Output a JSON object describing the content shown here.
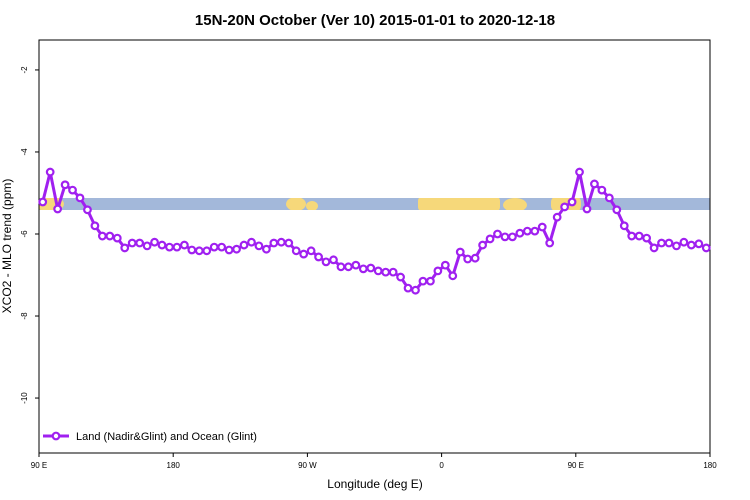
{
  "chart_data": {
    "type": "line",
    "title": "15N-20N October (Ver 10)   2015-01-01 to 2020-12-18",
    "xlabel": "Longitude (deg E)",
    "ylabel": "XCO2 - MLO trend (ppm)",
    "x": [
      92.5,
      97.5,
      102.5,
      107.5,
      112.5,
      117.5,
      122.5,
      127.5,
      132.5,
      137.5,
      142.5,
      147.5,
      152.5,
      157.5,
      162.5,
      167.5,
      172.5,
      177.5,
      182.5,
      187.5,
      192.5,
      197.5,
      202.5,
      207.5,
      212.5,
      217.5,
      222.5,
      227.5,
      232.5,
      237.5,
      242.5,
      247.5,
      252.5,
      257.5,
      262.5,
      267.5,
      272.5,
      277.5,
      282.5,
      287.5,
      292.5,
      297.5,
      302.5,
      307.5,
      312.5,
      317.5,
      322.5,
      327.5,
      332.5,
      337.5,
      342.5,
      347.5,
      352.5,
      357.5,
      362.5,
      367.5,
      372.5,
      377.5,
      382.5,
      387.5,
      392.5,
      397.5,
      402.5,
      407.5,
      412.5,
      417.5,
      422.5,
      427.5,
      432.5,
      437.5,
      442.5,
      447.5,
      452.5,
      457.5,
      462.5,
      467.5,
      472.5,
      477.5,
      482.5,
      487.5,
      492.5,
      497.5,
      502.5,
      507.5,
      512.5,
      517.5,
      522.5,
      527.5,
      532.5,
      537.5
    ],
    "series": [
      {
        "name": "Land (Nadir&Glint) and Ocean (Glint)",
        "color": "#a020f0",
        "values": [
          -5.22,
          -4.49,
          -5.39,
          -4.8,
          -4.93,
          -5.12,
          -5.41,
          -5.8,
          -6.05,
          -6.05,
          -6.1,
          -6.34,
          -6.22,
          -6.22,
          -6.29,
          -6.2,
          -6.27,
          -6.32,
          -6.32,
          -6.27,
          -6.39,
          -6.41,
          -6.41,
          -6.32,
          -6.32,
          -6.39,
          -6.37,
          -6.27,
          -6.2,
          -6.29,
          -6.37,
          -6.22,
          -6.2,
          -6.22,
          -6.41,
          -6.49,
          -6.41,
          -6.56,
          -6.68,
          -6.63,
          -6.8,
          -6.8,
          -6.76,
          -6.85,
          -6.83,
          -6.9,
          -6.93,
          -6.93,
          -7.05,
          -7.32,
          -7.37,
          -7.15,
          -7.15,
          -6.9,
          -6.76,
          -7.02,
          -6.44,
          -6.61,
          -6.59,
          -6.27,
          -6.12,
          -6.0,
          -6.07,
          -6.07,
          -5.98,
          -5.93,
          -5.93,
          -5.83,
          -6.22,
          -5.59,
          -5.34,
          -5.22,
          -4.49,
          -5.39,
          -4.78,
          -4.93,
          -5.12,
          -5.41,
          -5.8,
          -6.05,
          -6.05,
          -6.1,
          -6.34,
          -6.22,
          -6.22,
          -6.29,
          -6.2,
          -6.27,
          -6.24,
          -6.34
        ]
      }
    ],
    "xlim": [
      90,
      540
    ],
    "xticks": [
      {
        "value": 90,
        "label": "90 E"
      },
      {
        "value": 180,
        "label": "180"
      },
      {
        "value": 270,
        "label": "90 W"
      },
      {
        "value": 360,
        "label": "0"
      },
      {
        "value": 450,
        "label": "90 E"
      },
      {
        "value": 540,
        "label": "180"
      }
    ],
    "ylim": [
      -11.34,
      -1.27
    ],
    "yticks": [
      -10,
      -8,
      -6,
      -4,
      -2
    ],
    "legend": "bottom-left"
  }
}
